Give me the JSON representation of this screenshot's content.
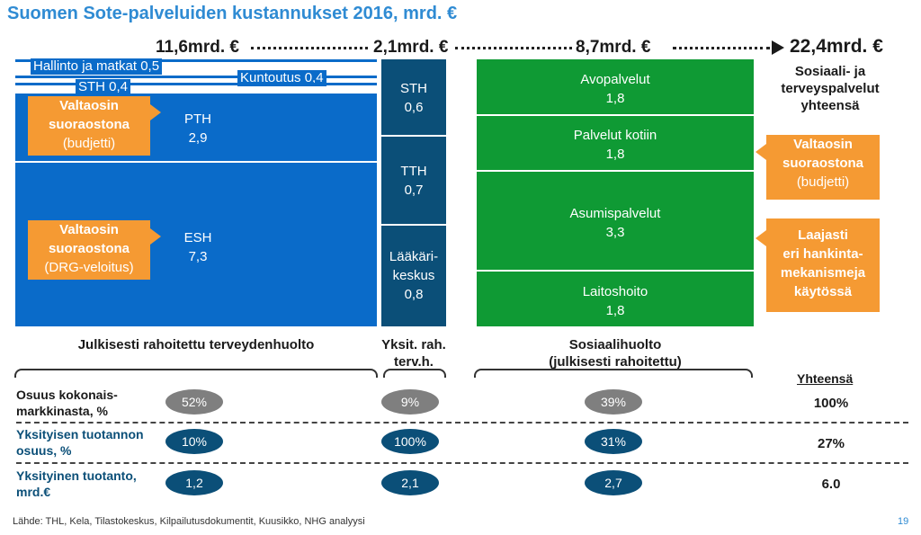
{
  "chart_data": {
    "type": "stacked-bar",
    "title": "Suomen Sote-palveluiden kustannukset 2016, mrd. €",
    "totals": {
      "public_health": "11,6mrd. €",
      "private_health": "2,1mrd. €",
      "social": "8,7mrd. €",
      "grand": "22,4mrd. €",
      "grand_caption": [
        "Sosiaali- ja",
        "terveyspalvelut",
        "yhteensä"
      ]
    },
    "groups": [
      {
        "name": "Julkisesti rahoitettu terveydenhuolto",
        "segments": [
          {
            "name": "Hallinto ja matkat",
            "value": 0.5,
            "label": "Hallinto ja matkat 0,5"
          },
          {
            "name": "Kuntoutus",
            "value": 0.4,
            "label": "Kuntoutus 0,4"
          },
          {
            "name": "STH",
            "value": 0.4,
            "label": "STH 0,4"
          },
          {
            "name": "PTH",
            "value": 2.9,
            "label": "PTH",
            "value_label": "2,9"
          },
          {
            "name": "ESH",
            "value": 7.3,
            "label": "ESH",
            "value_label": "7,3"
          }
        ]
      },
      {
        "name": "Yksit. rah. terv.h.",
        "label_lines": [
          "Yksit. rah.",
          "terv.h."
        ],
        "segments": [
          {
            "name": "STH",
            "value": 0.6,
            "label": "STH",
            "value_label": "0,6"
          },
          {
            "name": "TTH",
            "value": 0.7,
            "label": "TTH",
            "value_label": "0,7"
          },
          {
            "name": "Lääkärikeskus",
            "value": 0.8,
            "label_lines": [
              "Lääkäri-",
              "keskus"
            ],
            "value_label": "0,8"
          }
        ]
      },
      {
        "name": "Sosiaalihuolto (julkisesti rahoitettu)",
        "label_lines": [
          "Sosiaalihuolto",
          "(julkisesti rahoitettu)"
        ],
        "segments": [
          {
            "name": "Avopalvelut",
            "value": 1.8,
            "label": "Avopalvelut",
            "value_label": "1,8"
          },
          {
            "name": "Palvelut kotiin",
            "value": 1.8,
            "label": "Palvelut kotiin",
            "value_label": "1,8"
          },
          {
            "name": "Asumispalvelut",
            "value": 3.3,
            "label": "Asumispalvelut",
            "value_label": "3,3"
          },
          {
            "name": "Laitoshoito",
            "value": 1.8,
            "label": "Laitoshoito",
            "value_label": "1,8"
          }
        ]
      }
    ],
    "callouts": [
      {
        "id": "pth",
        "lines": [
          "Valtaosin",
          "suoraostona",
          "(budjetti)"
        ]
      },
      {
        "id": "esh",
        "lines": [
          "Valtaosin",
          "suoraostona",
          "(DRG-veloitus)"
        ]
      },
      {
        "id": "kotiin",
        "lines": [
          "Valtaosin",
          "suoraostona",
          "(budjetti)"
        ]
      },
      {
        "id": "asumis",
        "lines": [
          "Laajasti",
          "eri hankinta-",
          "mekanismeja",
          "käytössä"
        ]
      }
    ],
    "table": {
      "sum_header": "Yhteensä",
      "rows": [
        {
          "label_lines": [
            "Osuus kokonais-",
            "markkinasta, %"
          ],
          "values": [
            "52%",
            "9%",
            "39%"
          ],
          "total": "100%",
          "style": "grey"
        },
        {
          "label_lines": [
            "Yksityisen tuotannon",
            "osuus, %"
          ],
          "values": [
            "10%",
            "100%",
            "31%"
          ],
          "total": "27%",
          "style": "navy"
        },
        {
          "label_lines": [
            "Yksityinen tuotanto,",
            "mrd.€"
          ],
          "values": [
            "1,2",
            "2,1",
            "2,7"
          ],
          "total": "6.0",
          "style": "navy"
        }
      ]
    }
  },
  "footer": {
    "source": "Lähde: THL, Kela, Tilastokeskus, Kilpailutusdokumentit, Kuusikko, NHG analyysi",
    "page": "19"
  },
  "colors": {
    "public_blue": "#0a6bc9",
    "private_navy": "#0b4f78",
    "social_green": "#0f9a34",
    "callout_orange": "#f59a33",
    "title_blue": "#2f8bd3"
  }
}
